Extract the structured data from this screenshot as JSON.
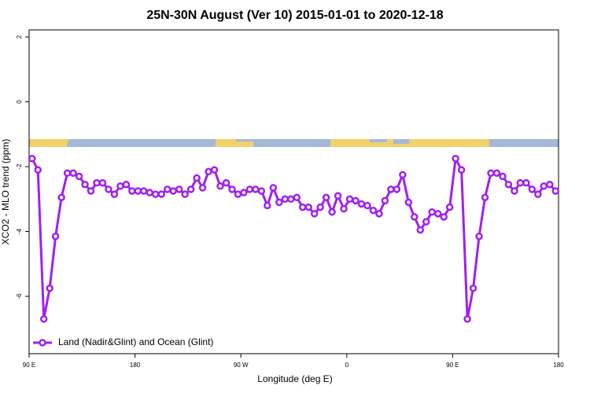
{
  "chart_data": {
    "type": "line",
    "title": "25N-30N August (Ver 10)   2015-01-01 to 2020-12-18",
    "x_label": "Longitude (deg E)",
    "y_label": "XCO2 - MLO trend (ppm)",
    "xlim": [
      90,
      540
    ],
    "xticks": [
      {
        "value": 90,
        "label": "90 E"
      },
      180,
      {
        "value": 270,
        "label": "90 W"
      },
      {
        "value": 360,
        "label": "0"
      },
      {
        "value": 450,
        "label": "90 E"
      },
      {
        "value": 540,
        "label": "180"
      }
    ],
    "ylim": [
      -7.77,
      2.22
    ],
    "yticks": [
      2,
      0,
      -2,
      -4,
      -6
    ],
    "legend": "bottom left",
    "x": [
      92.5,
      97.5,
      102.5,
      107.5,
      112.5,
      117.5,
      122.5,
      127.5,
      132.5,
      137.5,
      142.5,
      147.5,
      152.5,
      157.5,
      162.5,
      167.5,
      172.5,
      177.5,
      182.5,
      187.5,
      192.5,
      197.5,
      202.5,
      207.5,
      212.5,
      217.5,
      222.5,
      227.5,
      232.5,
      237.5,
      242.5,
      247.5,
      252.5,
      257.5,
      262.5,
      267.5,
      272.5,
      277.5,
      282.5,
      287.5,
      292.5,
      297.5,
      302.5,
      307.5,
      312.5,
      317.5,
      322.5,
      327.5,
      332.5,
      337.5,
      342.5,
      347.5,
      352.5,
      357.5,
      362.5,
      367.5,
      372.5,
      377.5,
      382.5,
      387.5,
      392.5,
      397.5,
      402.5,
      407.5,
      412.5,
      417.5,
      422.5,
      427.5,
      432.5,
      437.5,
      442.5,
      447.5,
      452.5,
      457.5,
      462.5,
      467.5,
      472.5,
      477.5,
      482.5,
      487.5,
      492.5,
      497.5,
      502.5,
      507.5,
      512.5,
      517.5,
      522.5,
      527.5,
      532.5,
      537.5
    ],
    "series": [
      {
        "name": "Land (Nadir&Glint) and Ocean (Glint)",
        "color": "#a020f0",
        "values": [
          -1.75,
          -2.1,
          -6.7,
          -5.75,
          -4.15,
          -2.95,
          -2.2,
          -2.2,
          -2.3,
          -2.55,
          -2.75,
          -2.5,
          -2.5,
          -2.7,
          -2.85,
          -2.6,
          -2.55,
          -2.75,
          -2.75,
          -2.75,
          -2.8,
          -2.85,
          -2.85,
          -2.7,
          -2.75,
          -2.7,
          -2.85,
          -2.7,
          -2.35,
          -2.65,
          -2.15,
          -2.1,
          -2.6,
          -2.5,
          -2.7,
          -2.85,
          -2.8,
          -2.7,
          -2.7,
          -2.75,
          -3.2,
          -2.65,
          -3.1,
          -3.0,
          -3.0,
          -2.95,
          -3.25,
          -3.25,
          -3.45,
          -3.25,
          -2.95,
          -3.4,
          -2.9,
          -3.3,
          -3.0,
          -3.05,
          -3.15,
          -3.2,
          -3.35,
          -3.45,
          -3.05,
          -2.7,
          -2.7,
          -2.25,
          -3.1,
          -3.55,
          -3.95,
          -3.7,
          -3.4,
          -3.45,
          -3.55,
          -3.25,
          -1.75,
          -2.1,
          -6.7,
          -5.75,
          -4.15,
          -2.95,
          -2.2,
          -2.2,
          -2.3,
          -2.55,
          -2.75,
          -2.5,
          -2.5,
          -2.7,
          -2.85,
          -2.6,
          -2.55,
          -2.75
        ]
      }
    ]
  }
}
